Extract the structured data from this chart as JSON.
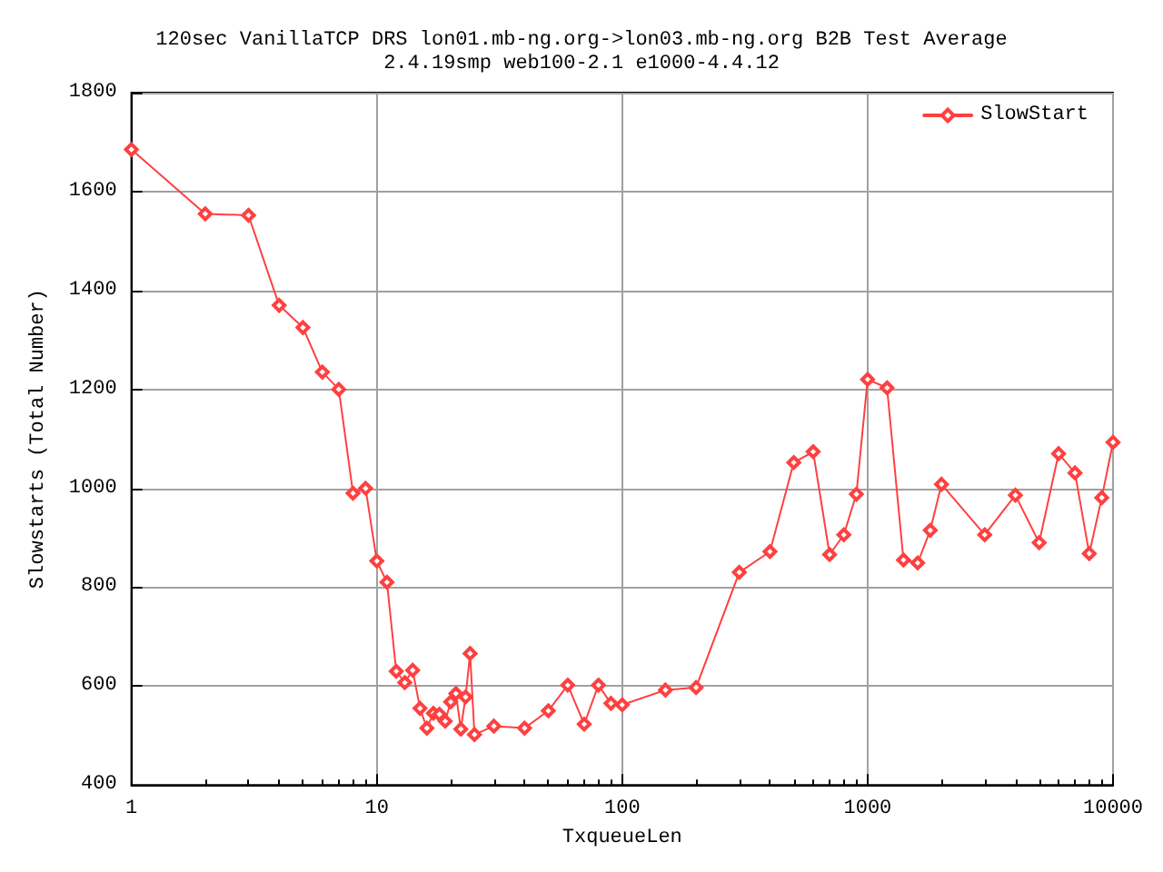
{
  "chart_data": {
    "type": "line",
    "title": "120sec VanillaTCP DRS lon01.mb-ng.org->lon03.mb-ng.org B2B Test Average",
    "subtitle": "2.4.19smp web100-2.1 e1000-4.4.12",
    "xlabel": "TxqueueLen",
    "ylabel": "Slowstarts (Total Number)",
    "x": [
      1,
      2,
      3,
      4,
      5,
      6,
      7,
      8,
      9,
      10,
      11,
      12,
      13,
      14,
      15,
      16,
      17,
      18,
      19,
      20,
      21,
      22,
      23,
      24,
      25,
      30,
      40,
      50,
      60,
      70,
      80,
      90,
      100,
      150,
      200,
      300,
      400,
      500,
      600,
      700,
      800,
      900,
      1000,
      1200,
      1400,
      1600,
      1800,
      2000,
      3000,
      4000,
      5000,
      6000,
      7000,
      8000,
      9000,
      10000
    ],
    "series": [
      {
        "name": "SlowStart",
        "color": "#ff4040",
        "values": [
          1685,
          1555,
          1552,
          1370,
          1325,
          1235,
          1200,
          990,
          1000,
          853,
          810,
          630,
          607,
          632,
          555,
          515,
          545,
          543,
          529,
          568,
          585,
          513,
          578,
          666,
          502,
          519,
          515,
          550,
          602,
          523,
          602,
          565,
          562,
          592,
          597,
          830,
          872,
          1052,
          1074,
          866,
          906,
          988,
          1220,
          1203,
          855,
          849,
          915,
          1008,
          906,
          986,
          890,
          1070,
          1031,
          868,
          981,
          1093
        ]
      }
    ],
    "xlim": [
      1,
      10000
    ],
    "xticks": [
      1,
      10,
      100,
      1000,
      10000
    ],
    "ylim": [
      400,
      1800
    ],
    "yticks": [
      400,
      600,
      800,
      1000,
      1200,
      1400,
      1600,
      1800
    ],
    "log": "x",
    "grid": true,
    "legend": "top right",
    "marker": "diamond",
    "line_style": "solid"
  }
}
